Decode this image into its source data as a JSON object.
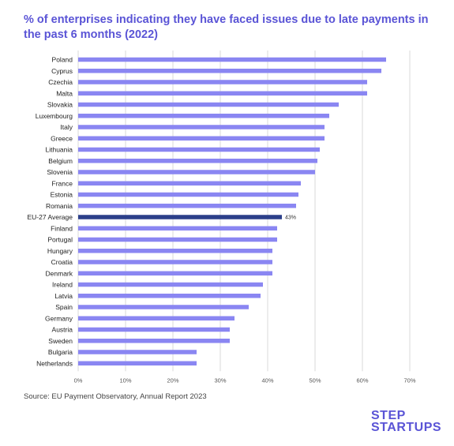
{
  "title": "% of enterprises indicating they have faced issues due to late payments in the past 6 months (2022)",
  "source": "Source: EU Payment Observatory, Annual Report 2023",
  "logo": {
    "line1": "STEP",
    "line2": "STARTUPS"
  },
  "colors": {
    "bar": "#8a86f2",
    "highlight": "#2b3f8a",
    "title": "#5a54d6",
    "grid": "#d9d9d9"
  },
  "chart_data": {
    "type": "bar",
    "orientation": "horizontal",
    "categories": [
      "Poland",
      "Cyprus",
      "Czechia",
      "Malta",
      "Slovakia",
      "Luxembourg",
      "Italy",
      "Greece",
      "Lithuania",
      "Belgium",
      "Slovenia",
      "France",
      "Estonia",
      "Romania",
      "EU-27 Average",
      "Finland",
      "Portugal",
      "Hungary",
      "Croatia",
      "Denmark",
      "Ireland",
      "Latvia",
      "Spain",
      "Germany",
      "Austria",
      "Sweden",
      "Bulgaria",
      "Netherlands"
    ],
    "values": [
      65,
      64,
      61,
      61,
      55,
      53,
      52,
      52,
      51,
      50.5,
      50,
      47,
      46.5,
      46,
      43,
      42,
      42,
      41,
      41,
      41,
      39,
      38.5,
      36,
      33,
      32,
      32,
      25,
      25
    ],
    "highlight_category": "EU-27 Average",
    "data_labels": {
      "EU-27 Average": "43%"
    },
    "xlim": [
      0,
      70
    ],
    "xticks": [
      "0%",
      "10%",
      "20%",
      "30%",
      "40%",
      "50%",
      "60%",
      "70%"
    ],
    "grid": true
  }
}
